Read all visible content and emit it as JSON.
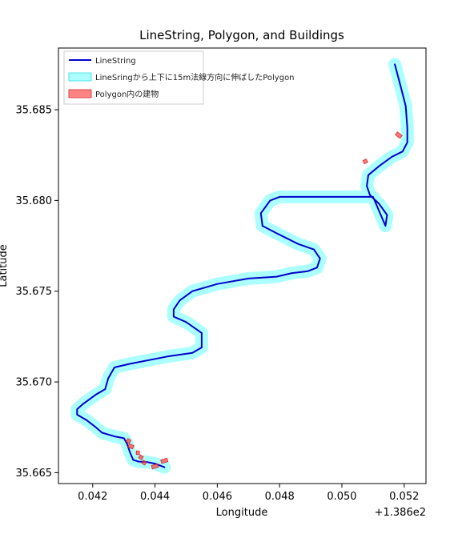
{
  "chart_data": {
    "type": "line",
    "title": "LineString, Polygon, and Buildings",
    "xlabel": "Longitude",
    "ylabel": "Latitude",
    "x_offset_label": "+1.386e2",
    "xlim": [
      0.0409,
      0.0527
    ],
    "ylim": [
      35.6644,
      35.6884
    ],
    "xticks": [
      0.042,
      0.044,
      0.046,
      0.048,
      0.05,
      0.052
    ],
    "xtick_labels": [
      "0.042",
      "0.044",
      "0.046",
      "0.048",
      "0.050",
      "0.052"
    ],
    "yticks": [
      35.665,
      35.67,
      35.675,
      35.68,
      35.685
    ],
    "ytick_labels": [
      "35.665",
      "35.670",
      "35.675",
      "35.680",
      "35.685"
    ],
    "legend_position": "upper-left",
    "series": [
      {
        "name": "LineString",
        "kind": "line",
        "color": "#0000cc",
        "x": [
          0.0517,
          0.0519,
          0.05205,
          0.0521,
          0.0521,
          0.05195,
          0.0516,
          0.0512,
          0.05085,
          0.0508,
          0.0509,
          0.0512,
          0.05145,
          0.0514,
          0.051,
          0.05,
          0.049,
          0.048,
          0.0477,
          0.0474,
          0.04745,
          0.0479,
          0.0486,
          0.0491,
          0.0493,
          0.0492,
          0.0489,
          0.0484,
          0.0479,
          0.047,
          0.046,
          0.0452,
          0.0448,
          0.0446,
          0.0446,
          0.045,
          0.0455,
          0.0455,
          0.0452,
          0.0444,
          0.0432,
          0.0427,
          0.0425,
          0.0424,
          0.0421,
          0.0417,
          0.0415,
          0.0415,
          0.0418,
          0.0421,
          0.0423,
          0.0427,
          0.043,
          0.0431,
          0.0432,
          0.0433,
          0.0435,
          0.0437,
          0.044,
          0.0443
        ],
        "y": [
          35.6875,
          35.6862,
          35.6852,
          35.684,
          35.6832,
          35.6827,
          35.6824,
          35.6819,
          35.6814,
          35.6808,
          35.6803,
          35.6798,
          35.6792,
          35.6786,
          35.6802,
          35.6802,
          35.6802,
          35.6802,
          35.68,
          35.6793,
          35.6786,
          35.6782,
          35.6776,
          35.6773,
          35.6768,
          35.6763,
          35.6761,
          35.676,
          35.6758,
          35.6757,
          35.6754,
          35.675,
          35.6745,
          35.674,
          35.6736,
          35.6733,
          35.6727,
          35.6719,
          35.6716,
          35.6714,
          35.671,
          35.6708,
          35.6702,
          35.6696,
          35.6693,
          35.6688,
          35.6685,
          35.6682,
          35.6679,
          35.6675,
          35.6672,
          35.667,
          35.6669,
          35.6666,
          35.6661,
          35.6657,
          35.6656,
          35.6656,
          35.6655,
          35.6653
        ]
      },
      {
        "name": "LineSringから上下に15m法線方向に伸ばしたPolygon",
        "kind": "polygon",
        "color": "#66ffff"
      },
      {
        "name": "Polygon内の建物",
        "kind": "polygon",
        "color": "#ff3333",
        "buildings": [
          {
            "x": [
              0.05175,
              0.0519
            ],
            "y": [
              35.6837,
              35.6835
            ]
          },
          {
            "x": [
              0.0507,
              0.0508
            ],
            "y": [
              35.6821,
              35.6822
            ]
          },
          {
            "x": [
              0.0431,
              0.0432
            ],
            "y": [
              35.6668,
              35.6667
            ]
          },
          {
            "x": [
              0.04315,
              0.0433
            ],
            "y": [
              35.6665,
              35.6664
            ]
          },
          {
            "x": [
              0.0434,
              0.0435
            ],
            "y": [
              35.6661,
              35.6661
            ]
          },
          {
            "x": [
              0.0435,
              0.0436
            ],
            "y": [
              35.6659,
              35.6658
            ]
          },
          {
            "x": [
              0.0436,
              0.0437
            ],
            "y": [
              35.6656,
              35.6655
            ]
          },
          {
            "x": [
              0.0439,
              0.0441
            ],
            "y": [
              35.6653,
              35.6654
            ]
          },
          {
            "x": [
              0.0442,
              0.0444
            ],
            "y": [
              35.6656,
              35.6657
            ]
          }
        ]
      }
    ]
  }
}
